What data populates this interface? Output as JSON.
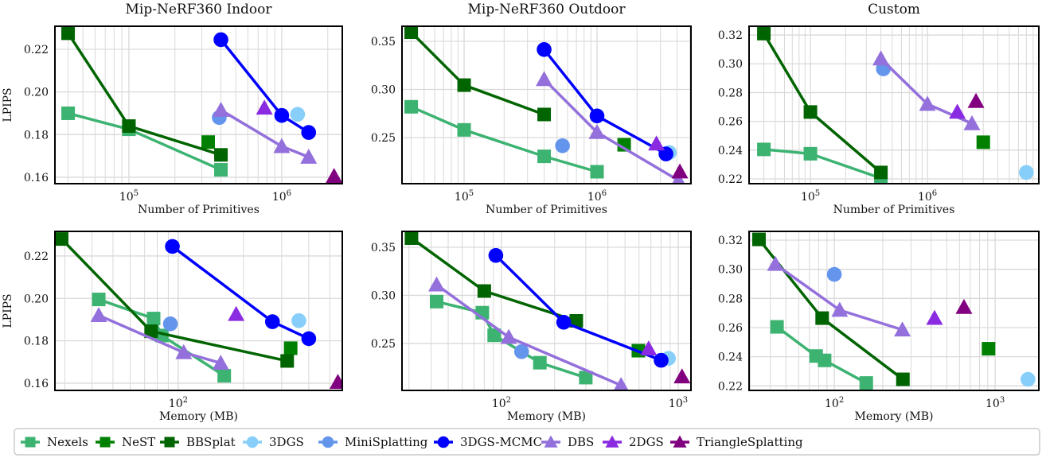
{
  "chart_data": [
    {
      "type": "line",
      "title": "Mip-NeRF360 Indoor",
      "xlabel": "Number of Primitives",
      "ylabel": "LPIPS",
      "xscale": "log",
      "xlim": [
        32800,
        2490000
      ],
      "ylim": [
        0.157,
        0.2308
      ],
      "xticks": [
        {
          "value": 100000,
          "base": "10",
          "exp": "5"
        },
        {
          "value": 1000000,
          "base": "10",
          "exp": "6"
        }
      ],
      "yticks": [
        0.16,
        0.18,
        0.2,
        0.22
      ],
      "grid": true,
      "series": [
        {
          "name": "Nexels",
          "points": [
            [
              40000,
              0.19
            ],
            [
              100000,
              0.1825
            ],
            [
              400000,
              0.1635
            ]
          ]
        },
        {
          "name": "NeST",
          "points": [
            [
              330000,
              0.1765
            ]
          ]
        },
        {
          "name": "BBSplat",
          "points": [
            [
              40000,
              0.2275
            ],
            [
              100000,
              0.184
            ],
            [
              400000,
              0.1705
            ]
          ]
        },
        {
          "name": "3DGS",
          "points": [
            [
              1270000,
              0.1895
            ]
          ]
        },
        {
          "name": "MiniSplatting",
          "points": [
            [
              390000,
              0.188
            ]
          ]
        },
        {
          "name": "3DGS-MCMC",
          "points": [
            [
              400000,
              0.2245
            ],
            [
              1000000,
              0.189
            ],
            [
              1500000,
              0.181
            ]
          ]
        },
        {
          "name": "DBS",
          "points": [
            [
              400000,
              0.1915
            ],
            [
              1000000,
              0.1745
            ],
            [
              1500000,
              0.1695
            ]
          ]
        },
        {
          "name": "2DGS",
          "points": [
            [
              770000,
              0.1925
            ]
          ]
        },
        {
          "name": "TriangleSplatting",
          "points": [
            [
              2200000,
              0.1605
            ]
          ]
        }
      ]
    },
    {
      "type": "line",
      "title": "Mip-NeRF360 Outdoor",
      "xlabel": "Number of Primitives",
      "ylabel": "",
      "xscale": "log",
      "xlim": [
        34100,
        5090000
      ],
      "ylim": [
        0.2021,
        0.3657
      ],
      "xticks": [
        {
          "value": 100000,
          "base": "10",
          "exp": "5"
        },
        {
          "value": 1000000,
          "base": "10",
          "exp": "6"
        }
      ],
      "yticks": [
        0.25,
        0.3,
        0.35
      ],
      "grid": true,
      "series": [
        {
          "name": "Nexels",
          "points": [
            [
              40000,
              0.282
            ],
            [
              100000,
              0.258
            ],
            [
              400000,
              0.2305
            ],
            [
              1000000,
              0.2145
            ]
          ]
        },
        {
          "name": "NeST",
          "points": [
            [
              1600000,
              0.2425
            ]
          ]
        },
        {
          "name": "BBSplat",
          "points": [
            [
              40000,
              0.3595
            ],
            [
              100000,
              0.3045
            ],
            [
              400000,
              0.274
            ]
          ]
        },
        {
          "name": "3DGS",
          "points": [
            [
              3500000,
              0.2345
            ]
          ]
        },
        {
          "name": "MiniSplatting",
          "points": [
            [
              550000,
              0.2415
            ]
          ]
        },
        {
          "name": "3DGS-MCMC",
          "points": [
            [
              400000,
              0.3415
            ],
            [
              1000000,
              0.2725
            ],
            [
              3300000,
              0.233
            ]
          ]
        },
        {
          "name": "DBS",
          "points": [
            [
              400000,
              0.3105
            ],
            [
              1000000,
              0.2555
            ],
            [
              4100000,
              0.2055
            ]
          ]
        },
        {
          "name": "2DGS",
          "points": [
            [
              2800000,
              0.2435
            ]
          ]
        },
        {
          "name": "TriangleSplatting",
          "points": [
            [
              4200000,
              0.2145
            ]
          ]
        }
      ]
    },
    {
      "type": "line",
      "title": "Custom",
      "xlabel": "Number of Primitives",
      "ylabel": "",
      "xscale": "log",
      "xlim": [
        29900,
        8950000
      ],
      "ylim": [
        0.2167,
        0.3261
      ],
      "xticks": [
        {
          "value": 100000,
          "base": "10",
          "exp": "5"
        },
        {
          "value": 1000000,
          "base": "10",
          "exp": "6"
        }
      ],
      "yticks": [
        0.22,
        0.24,
        0.26,
        0.28,
        0.3,
        0.32
      ],
      "grid": true,
      "series": [
        {
          "name": "Nexels",
          "points": [
            [
              40000,
              0.2405
            ],
            [
              100000,
              0.2375
            ],
            [
              400000,
              0.2205
            ]
          ]
        },
        {
          "name": "NeST",
          "points": [
            [
              3000000,
              0.2455
            ]
          ]
        },
        {
          "name": "BBSplat",
          "points": [
            [
              40000,
              0.321
            ],
            [
              100000,
              0.2665
            ],
            [
              400000,
              0.2245
            ]
          ]
        },
        {
          "name": "3DGS",
          "points": [
            [
              7000000,
              0.2245
            ]
          ]
        },
        {
          "name": "MiniSplatting",
          "points": [
            [
              420000,
              0.2965
            ]
          ]
        },
        {
          "name": "3DGS-MCMC",
          "points": []
        },
        {
          "name": "DBS",
          "points": [
            [
              400000,
              0.3035
            ],
            [
              1000000,
              0.272
            ],
            [
              2400000,
              0.2585
            ]
          ]
        },
        {
          "name": "2DGS",
          "points": [
            [
              1800000,
              0.2665
            ]
          ]
        },
        {
          "name": "TriangleSplatting",
          "points": [
            [
              2600000,
              0.274
            ]
          ]
        }
      ]
    },
    {
      "type": "line",
      "title": "",
      "xlabel": "Memory (MB)",
      "ylabel": "LPIPS",
      "xscale": "log",
      "xlim": [
        27,
        571
      ],
      "ylim": [
        0.1566,
        0.2316
      ],
      "xticks": [
        {
          "value": 100,
          "base": "10",
          "exp": "2"
        }
      ],
      "yticks": [
        0.16,
        0.18,
        0.2,
        0.22
      ],
      "grid": true,
      "series": [
        {
          "name": "Nexels",
          "points": [
            [
              43,
              0.1995
            ],
            [
              77,
              0.1905
            ],
            [
              84,
              0.1825
            ],
            [
              163,
              0.1635
            ]
          ]
        },
        {
          "name": "NeST",
          "points": [
            [
              330,
              0.1765
            ]
          ]
        },
        {
          "name": "BBSplat",
          "points": [
            [
              29,
              0.228
            ],
            [
              75,
              0.1845
            ],
            [
              318,
              0.1705
            ]
          ]
        },
        {
          "name": "3DGS",
          "points": [
            [
              360,
              0.1895
            ]
          ]
        },
        {
          "name": "MiniSplatting",
          "points": [
            [
              92,
              0.188
            ]
          ]
        },
        {
          "name": "3DGS-MCMC",
          "points": [
            [
              94,
              0.2245
            ],
            [
              272,
              0.189
            ],
            [
              400,
              0.181
            ]
          ]
        },
        {
          "name": "DBS",
          "points": [
            [
              43,
              0.192
            ],
            [
              106,
              0.1745
            ],
            [
              157,
              0.1695
            ]
          ]
        },
        {
          "name": "2DGS",
          "points": [
            [
              185,
              0.1925
            ]
          ]
        },
        {
          "name": "TriangleSplatting",
          "points": [
            [
              545,
              0.1605
            ]
          ]
        }
      ]
    },
    {
      "type": "line",
      "title": "",
      "xlabel": "Memory (MB)",
      "ylabel": "",
      "xscale": "log",
      "xlim": [
        27.4,
        1180
      ],
      "ylim": [
        0.2012,
        0.3665
      ],
      "xticks": [
        {
          "value": 100,
          "base": "10",
          "exp": "2"
        },
        {
          "value": 1000,
          "base": "10",
          "exp": "3"
        }
      ],
      "yticks": [
        0.25,
        0.3,
        0.35
      ],
      "grid": true,
      "series": [
        {
          "name": "Nexels",
          "points": [
            [
              43,
              0.2935
            ],
            [
              78,
              0.282
            ],
            [
              91,
              0.2585
            ],
            [
              165,
              0.23
            ],
            [
              300,
              0.2145
            ]
          ]
        },
        {
          "name": "NeST",
          "points": [
            [
              595,
              0.2425
            ]
          ]
        },
        {
          "name": "BBSplat",
          "points": [
            [
              31,
              0.3595
            ],
            [
              80,
              0.3045
            ],
            [
              265,
              0.2735
            ]
          ]
        },
        {
          "name": "3DGS",
          "points": [
            [
              880,
              0.2345
            ]
          ]
        },
        {
          "name": "MiniSplatting",
          "points": [
            [
              130,
              0.2415
            ]
          ]
        },
        {
          "name": "3DGS-MCMC",
          "points": [
            [
              93,
              0.3415
            ],
            [
              225,
              0.272
            ],
            [
              800,
              0.2325
            ]
          ]
        },
        {
          "name": "DBS",
          "points": [
            [
              43,
              0.311
            ],
            [
              110,
              0.2565
            ],
            [
              475,
              0.2065
            ]
          ]
        },
        {
          "name": "2DGS",
          "points": [
            [
              680,
              0.2445
            ]
          ]
        },
        {
          "name": "TriangleSplatting",
          "points": [
            [
              1050,
              0.2155
            ]
          ]
        }
      ]
    },
    {
      "type": "line",
      "title": "",
      "xlabel": "Memory (MB)",
      "ylabel": "",
      "xscale": "log",
      "xlim": [
        29.5,
        1870
      ],
      "ylim": [
        0.2169,
        0.326
      ],
      "xticks": [
        {
          "value": 100,
          "base": "10",
          "exp": "2"
        },
        {
          "value": 1000,
          "base": "10",
          "exp": "3"
        }
      ],
      "yticks": [
        0.22,
        0.24,
        0.26,
        0.28,
        0.3,
        0.32
      ],
      "grid": true,
      "series": [
        {
          "name": "Nexels",
          "points": [
            [
              44,
              0.2605
            ],
            [
              77,
              0.2405
            ],
            [
              87,
              0.2375
            ],
            [
              158,
              0.222
            ]
          ]
        },
        {
          "name": "NeST",
          "points": [
            [
              910,
              0.2455
            ]
          ]
        },
        {
          "name": "BBSplat",
          "points": [
            [
              34,
              0.3205
            ],
            [
              84,
              0.2665
            ],
            [
              267,
              0.2245
            ]
          ]
        },
        {
          "name": "3DGS",
          "points": [
            [
              1600,
              0.2245
            ]
          ]
        },
        {
          "name": "MiniSplatting",
          "points": [
            [
              100,
              0.2965
            ]
          ]
        },
        {
          "name": "3DGS-MCMC",
          "points": []
        },
        {
          "name": "DBS",
          "points": [
            [
              43,
              0.3035
            ],
            [
              108,
              0.272
            ],
            [
              265,
              0.2585
            ]
          ]
        },
        {
          "name": "2DGS",
          "points": [
            [
              420,
              0.2665
            ]
          ]
        },
        {
          "name": "TriangleSplatting",
          "points": [
            [
              640,
              0.274
            ]
          ]
        }
      ]
    }
  ],
  "legend": {
    "placement": "bottom-center",
    "entries": [
      {
        "name": "Nexels",
        "marker": "square",
        "color": "#3cb371"
      },
      {
        "name": "NeST",
        "marker": "square",
        "color": "#008000"
      },
      {
        "name": "BBSplat",
        "marker": "square",
        "color": "#006400"
      },
      {
        "name": "3DGS",
        "marker": "circle",
        "color": "#87cefa"
      },
      {
        "name": "MiniSplatting",
        "marker": "circle",
        "color": "#6495ed"
      },
      {
        "name": "3DGS-MCMC",
        "marker": "circle",
        "color": "#0000ff"
      },
      {
        "name": "DBS",
        "marker": "triangle",
        "color": "#9370db"
      },
      {
        "name": "2DGS",
        "marker": "triangle",
        "color": "#8a2be2"
      },
      {
        "name": "TriangleSplatting",
        "marker": "triangle",
        "color": "#800080"
      }
    ]
  }
}
